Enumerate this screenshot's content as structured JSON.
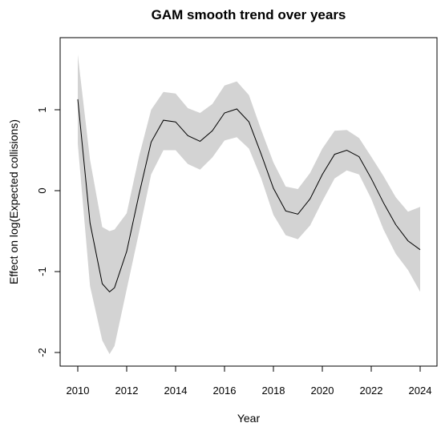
{
  "chart_data": {
    "type": "line",
    "title": "GAM smooth trend over years",
    "xlabel": "Year",
    "ylabel": "Effect on log(Expected collisions)",
    "xlim": [
      2009.5,
      2024.5
    ],
    "ylim": [
      -2.1,
      1.9
    ],
    "x_ticks": [
      2010,
      2012,
      2014,
      2016,
      2018,
      2020,
      2022,
      2024
    ],
    "y_ticks": [
      -2,
      -1,
      0,
      1
    ],
    "grid": false,
    "legend": "none",
    "colors": {
      "band": "#d3d3d3",
      "line": "#000000"
    },
    "series": [
      {
        "x": [
          2010.0,
          2010.5,
          2011.0,
          2011.3,
          2011.5,
          2012.0,
          2012.5,
          2013.0,
          2013.5,
          2014.0,
          2014.5,
          2015.0,
          2015.5,
          2016.0,
          2016.5,
          2017.0,
          2017.5,
          2018.0,
          2018.5,
          2019.0,
          2019.5,
          2020.0,
          2020.5,
          2021.0,
          2021.5,
          2022.0,
          2022.5,
          2023.0,
          2023.5,
          2024.0
        ],
        "y": [
          1.13,
          -0.4,
          -1.15,
          -1.25,
          -1.2,
          -0.75,
          -0.05,
          0.6,
          0.87,
          0.85,
          0.68,
          0.61,
          0.74,
          0.96,
          1.01,
          0.85,
          0.45,
          0.03,
          -0.25,
          -0.29,
          -0.1,
          0.2,
          0.45,
          0.5,
          0.42,
          0.15,
          -0.15,
          -0.42,
          -0.62,
          -0.73
        ],
        "lower": [
          0.58,
          -1.18,
          -1.85,
          -2.02,
          -1.92,
          -1.22,
          -0.52,
          0.2,
          0.5,
          0.5,
          0.33,
          0.26,
          0.41,
          0.62,
          0.66,
          0.52,
          0.15,
          -0.3,
          -0.55,
          -0.6,
          -0.43,
          -0.13,
          0.15,
          0.25,
          0.2,
          -0.1,
          -0.48,
          -0.78,
          -0.98,
          -1.25
        ],
        "upper": [
          1.68,
          0.38,
          -0.45,
          -0.5,
          -0.48,
          -0.28,
          0.42,
          1.0,
          1.22,
          1.2,
          1.02,
          0.96,
          1.07,
          1.3,
          1.35,
          1.18,
          0.75,
          0.35,
          0.05,
          0.02,
          0.22,
          0.52,
          0.74,
          0.75,
          0.65,
          0.42,
          0.18,
          -0.08,
          -0.26,
          -0.2
        ]
      }
    ]
  }
}
